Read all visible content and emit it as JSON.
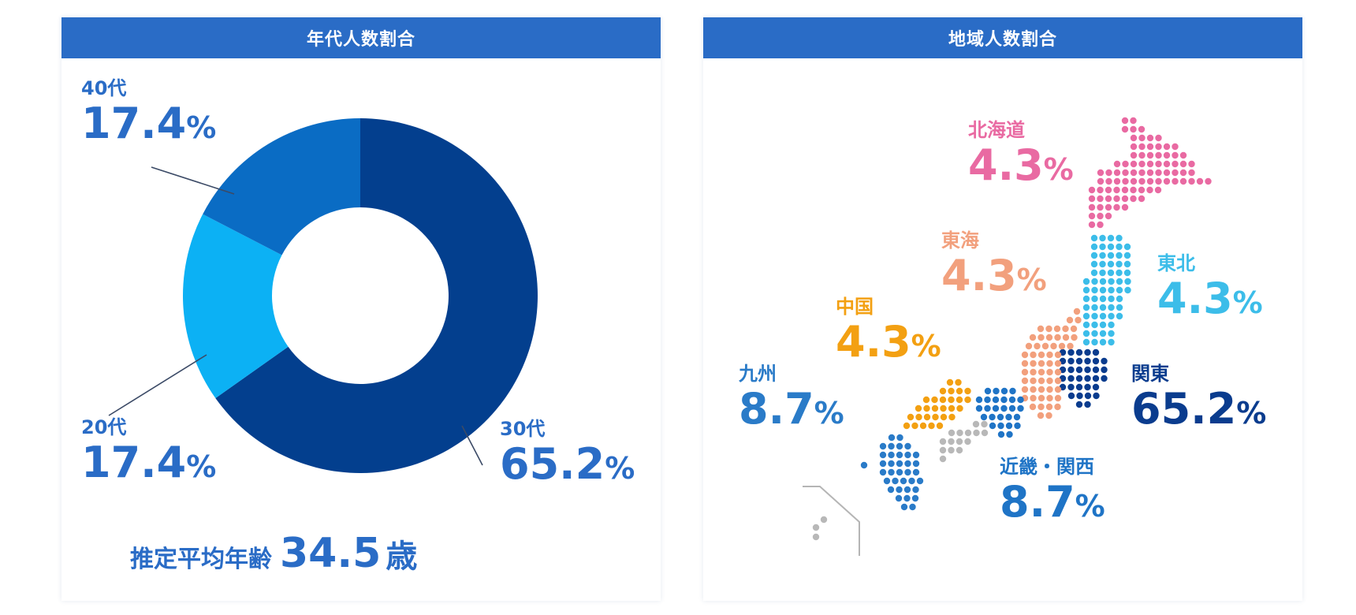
{
  "colors": {
    "header_bg": "#2a6cc6",
    "age_30s": "#033f8e",
    "age_40s": "#0a6cc4",
    "age_20s": "#0cb1f4",
    "hokkaido": "#e96aa2",
    "tohoku": "#3cbde9",
    "kanto": "#0a3c8e",
    "tokai": "#f2a07d",
    "kinki": "#1f74c6",
    "chugoku": "#f3a012",
    "kyushu": "#2a7bc8",
    "shikoku": "#b8b8b8",
    "label_blue": "#2a6cc6"
  },
  "age_panel": {
    "title": "年代人数割合",
    "average_label": "推定平均年齢",
    "average_value": "34.5",
    "average_unit": "歳"
  },
  "region_panel": {
    "title": "地域人数割合"
  },
  "chart_data": [
    {
      "type": "pie",
      "title": "年代人数割合",
      "donut": true,
      "labels": [
        "30代",
        "20代",
        "40代"
      ],
      "values": [
        65.2,
        17.4,
        17.4
      ],
      "display": {
        "30s": {
          "label": "30代",
          "num": "65.2",
          "pct": "%"
        },
        "20s": {
          "label": "20代",
          "num": "17.4",
          "pct": "%"
        },
        "40s": {
          "label": "40代",
          "num": "17.4",
          "pct": "%"
        }
      }
    },
    {
      "type": "table",
      "title": "地域人数割合",
      "regions": [
        "北海道",
        "東北",
        "関東",
        "東海",
        "近畿・関西",
        "中国",
        "九州"
      ],
      "values": [
        4.3,
        4.3,
        65.2,
        4.3,
        8.7,
        4.3,
        8.7
      ],
      "display": {
        "hokkaido": {
          "label": "北海道",
          "num": "4.3",
          "pct": "%"
        },
        "tohoku": {
          "label": "東北",
          "num": "4.3",
          "pct": "%"
        },
        "kanto": {
          "label": "関東",
          "num": "65.2",
          "pct": "%"
        },
        "tokai": {
          "label": "東海",
          "num": "4.3",
          "pct": "%"
        },
        "kinki": {
          "label": "近畿・関西",
          "num": "8.7",
          "pct": "%"
        },
        "chugoku": {
          "label": "中国",
          "num": "4.3",
          "pct": "%"
        },
        "kyushu": {
          "label": "九州",
          "num": "8.7",
          "pct": "%"
        }
      }
    }
  ]
}
